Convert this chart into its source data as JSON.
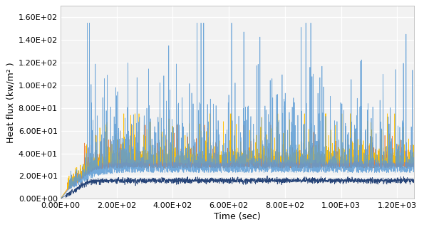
{
  "title": "",
  "xlabel": "Time (sec)",
  "ylabel": "Heat flux (kw/m² )",
  "xlim": [
    0,
    1260
  ],
  "ylim": [
    0,
    170
  ],
  "yticks": [
    0,
    20,
    40,
    60,
    80,
    100,
    120,
    140,
    160
  ],
  "xticks": [
    0,
    200,
    400,
    600,
    800,
    1000,
    1200
  ],
  "colors": {
    "light_blue": "#5B9BD5",
    "dark_blue": "#264478",
    "orange": "#ED7D31",
    "yellow": "#FFC000",
    "gray": "#A5A5A5"
  },
  "background": "#FFFFFF",
  "plot_bg": "#F2F2F2",
  "grid_color": "#FFFFFF",
  "seed": 42,
  "n_points": 2520
}
